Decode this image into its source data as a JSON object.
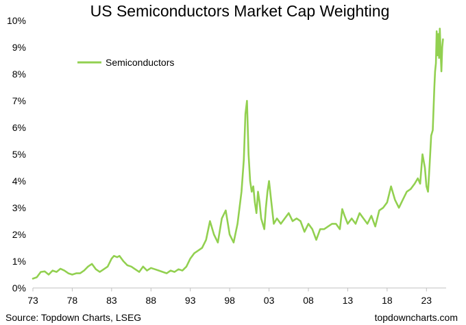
{
  "chart_data": {
    "type": "line",
    "title": "US Semiconductors Market Cap Weighting",
    "xlabel": "",
    "ylabel": "",
    "xlim": [
      1973,
      2025.5
    ],
    "ylim": [
      0,
      10
    ],
    "x_ticks": [
      "73",
      "78",
      "83",
      "88",
      "93",
      "98",
      "03",
      "08",
      "13",
      "18",
      "23"
    ],
    "x_tick_years": [
      1973,
      1978,
      1983,
      1988,
      1993,
      1998,
      2003,
      2008,
      2013,
      2018,
      2023
    ],
    "y_ticks": [
      "0%",
      "1%",
      "2%",
      "3%",
      "4%",
      "5%",
      "6%",
      "7%",
      "8%",
      "9%",
      "10%"
    ],
    "y_tick_values": [
      0,
      1,
      2,
      3,
      4,
      5,
      6,
      7,
      8,
      9,
      10
    ],
    "grid": false,
    "legend_position": "top-left",
    "series": [
      {
        "name": "Semiconductors",
        "color": "#92d050",
        "x": [
          1973.0,
          1973.5,
          1974.0,
          1974.5,
          1975.0,
          1975.5,
          1976.0,
          1976.5,
          1977.0,
          1977.5,
          1978.0,
          1978.5,
          1979.0,
          1979.5,
          1980.0,
          1980.5,
          1981.0,
          1981.5,
          1982.0,
          1982.5,
          1983.0,
          1983.3,
          1983.7,
          1984.0,
          1984.5,
          1985.0,
          1985.5,
          1986.0,
          1986.5,
          1987.0,
          1987.5,
          1988.0,
          1988.5,
          1989.0,
          1989.5,
          1990.0,
          1990.5,
          1991.0,
          1991.5,
          1992.0,
          1992.5,
          1993.0,
          1993.5,
          1994.0,
          1994.5,
          1995.0,
          1995.5,
          1996.0,
          1996.5,
          1997.0,
          1997.5,
          1998.0,
          1998.5,
          1999.0,
          1999.5,
          1999.8,
          2000.0,
          2000.2,
          2000.4,
          2000.6,
          2000.8,
          2001.0,
          2001.2,
          2001.4,
          2001.6,
          2001.8,
          2002.0,
          2002.2,
          2002.4,
          2002.6,
          2002.8,
          2003.0,
          2003.3,
          2003.6,
          2004.0,
          2004.5,
          2005.0,
          2005.5,
          2006.0,
          2006.5,
          2007.0,
          2007.5,
          2008.0,
          2008.5,
          2009.0,
          2009.5,
          2010.0,
          2010.5,
          2011.0,
          2011.5,
          2012.0,
          2012.3,
          2012.6,
          2013.0,
          2013.5,
          2014.0,
          2014.5,
          2015.0,
          2015.5,
          2016.0,
          2016.5,
          2017.0,
          2017.5,
          2018.0,
          2018.5,
          2019.0,
          2019.5,
          2020.0,
          2020.5,
          2021.0,
          2021.5,
          2021.9,
          2022.2,
          2022.5,
          2022.8,
          2023.0,
          2023.2,
          2023.4,
          2023.6,
          2023.8,
          2024.0,
          2024.1,
          2024.2,
          2024.3,
          2024.4,
          2024.5,
          2024.6,
          2024.7,
          2024.8,
          2024.9,
          2025.0,
          2025.1
        ],
        "values": [
          0.35,
          0.4,
          0.6,
          0.62,
          0.5,
          0.65,
          0.6,
          0.72,
          0.65,
          0.55,
          0.5,
          0.55,
          0.55,
          0.65,
          0.8,
          0.9,
          0.7,
          0.6,
          0.7,
          0.8,
          1.1,
          1.2,
          1.15,
          1.2,
          1.0,
          0.85,
          0.8,
          0.7,
          0.6,
          0.8,
          0.65,
          0.75,
          0.7,
          0.65,
          0.6,
          0.55,
          0.65,
          0.6,
          0.7,
          0.65,
          0.8,
          1.1,
          1.3,
          1.4,
          1.5,
          1.8,
          2.5,
          2.0,
          1.7,
          2.6,
          2.9,
          2.0,
          1.7,
          2.4,
          3.6,
          4.8,
          6.5,
          7.0,
          5.0,
          4.0,
          3.6,
          3.8,
          3.2,
          2.8,
          3.6,
          3.2,
          2.6,
          2.4,
          2.2,
          3.0,
          3.6,
          4.0,
          3.2,
          2.4,
          2.6,
          2.4,
          2.6,
          2.8,
          2.5,
          2.6,
          2.5,
          2.1,
          2.4,
          2.2,
          1.8,
          2.2,
          2.2,
          2.3,
          2.4,
          2.4,
          2.2,
          2.95,
          2.7,
          2.4,
          2.6,
          2.4,
          2.8,
          2.6,
          2.4,
          2.7,
          2.3,
          2.9,
          3.0,
          3.2,
          3.8,
          3.3,
          3.0,
          3.3,
          3.6,
          3.7,
          3.9,
          4.1,
          3.9,
          5.0,
          4.5,
          3.8,
          3.6,
          4.6,
          5.7,
          5.9,
          7.5,
          8.1,
          8.4,
          9.6,
          8.7,
          9.5,
          8.6,
          9.7,
          8.8,
          8.1,
          9.0,
          9.3
        ]
      }
    ]
  },
  "source": "Source: Topdown Charts, LSEG",
  "watermark": "topdowncharts.com"
}
